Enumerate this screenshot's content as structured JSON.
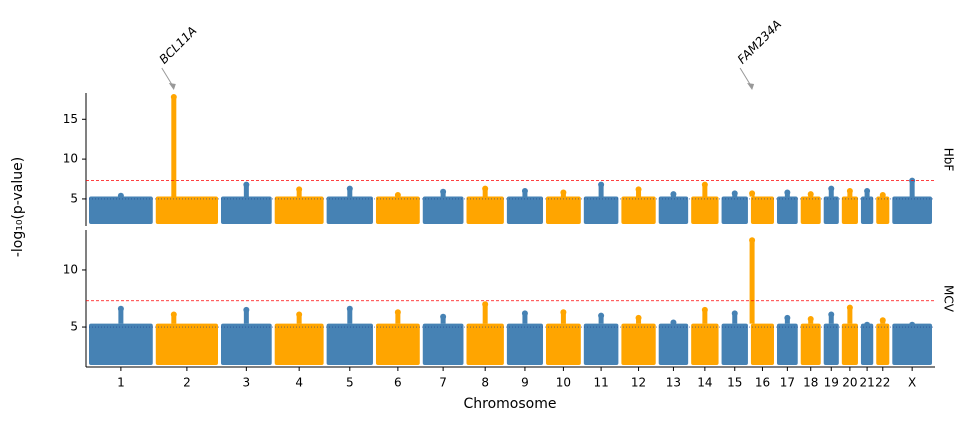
{
  "chart_data": {
    "type": "manhattan",
    "xlabel": "Chromosome",
    "ylabel": "-log₁₀(p-value)",
    "categories": [
      "1",
      "2",
      "3",
      "4",
      "5",
      "6",
      "7",
      "8",
      "9",
      "10",
      "11",
      "12",
      "13",
      "14",
      "15",
      "16",
      "17",
      "18",
      "19",
      "20",
      "21",
      "22",
      "X"
    ],
    "lengths": [
      249,
      243,
      198,
      191,
      181,
      171,
      159,
      146,
      141,
      136,
      135,
      134,
      115,
      107,
      103,
      90,
      81,
      78,
      59,
      63,
      48,
      51,
      155
    ],
    "colors": [
      "#4682b4",
      "#ffa500"
    ],
    "threshold": 7.3,
    "suggestive": 5,
    "panels": [
      {
        "name": "HbF",
        "ylim": [
          1.6,
          18.3
        ],
        "yticks": [
          5,
          10,
          15
        ],
        "band_top": 5.3,
        "values": [
          5.4,
          17.8,
          6.8,
          6.2,
          6.3,
          5.5,
          5.9,
          6.3,
          6.0,
          5.8,
          6.8,
          6.2,
          5.6,
          6.8,
          5.7,
          5.7,
          5.8,
          5.6,
          6.3,
          6.0,
          6.0,
          5.5,
          7.3
        ],
        "annotations": [
          {
            "text": "BCL11A",
            "chromosome": "2"
          },
          {
            "text": "FAM234A",
            "chromosome": "16"
          }
        ]
      },
      {
        "name": "MCV",
        "ylim": [
          1.5,
          13.5
        ],
        "yticks": [
          5,
          10
        ],
        "band_top": 5.3,
        "values": [
          6.6,
          6.1,
          6.5,
          6.1,
          6.6,
          6.3,
          5.9,
          7.0,
          6.2,
          6.3,
          6.0,
          5.8,
          5.4,
          6.5,
          6.2,
          12.6,
          5.8,
          5.7,
          6.1,
          6.7,
          5.2,
          5.6,
          5.2
        ]
      }
    ]
  }
}
